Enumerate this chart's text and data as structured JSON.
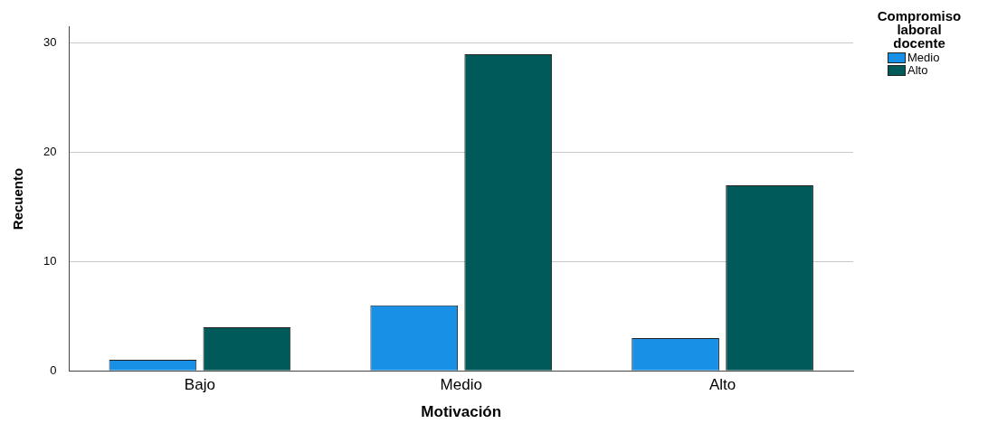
{
  "chart_data": {
    "type": "bar",
    "xlabel": "Motivación",
    "ylabel": "Recuento",
    "legend_title": "Compromiso laboral docente",
    "categories": [
      "Bajo",
      "Medio",
      "Alto"
    ],
    "series": [
      {
        "name": "Medio",
        "color": "#1790e6",
        "values": [
          1,
          6,
          3
        ]
      },
      {
        "name": "Alto",
        "color": "#005a5a",
        "values": [
          4,
          29,
          17
        ]
      }
    ],
    "ylim": [
      0,
      31.5
    ],
    "yticks": [
      0,
      10,
      20,
      30
    ],
    "grid": "y",
    "legend": "top right"
  }
}
